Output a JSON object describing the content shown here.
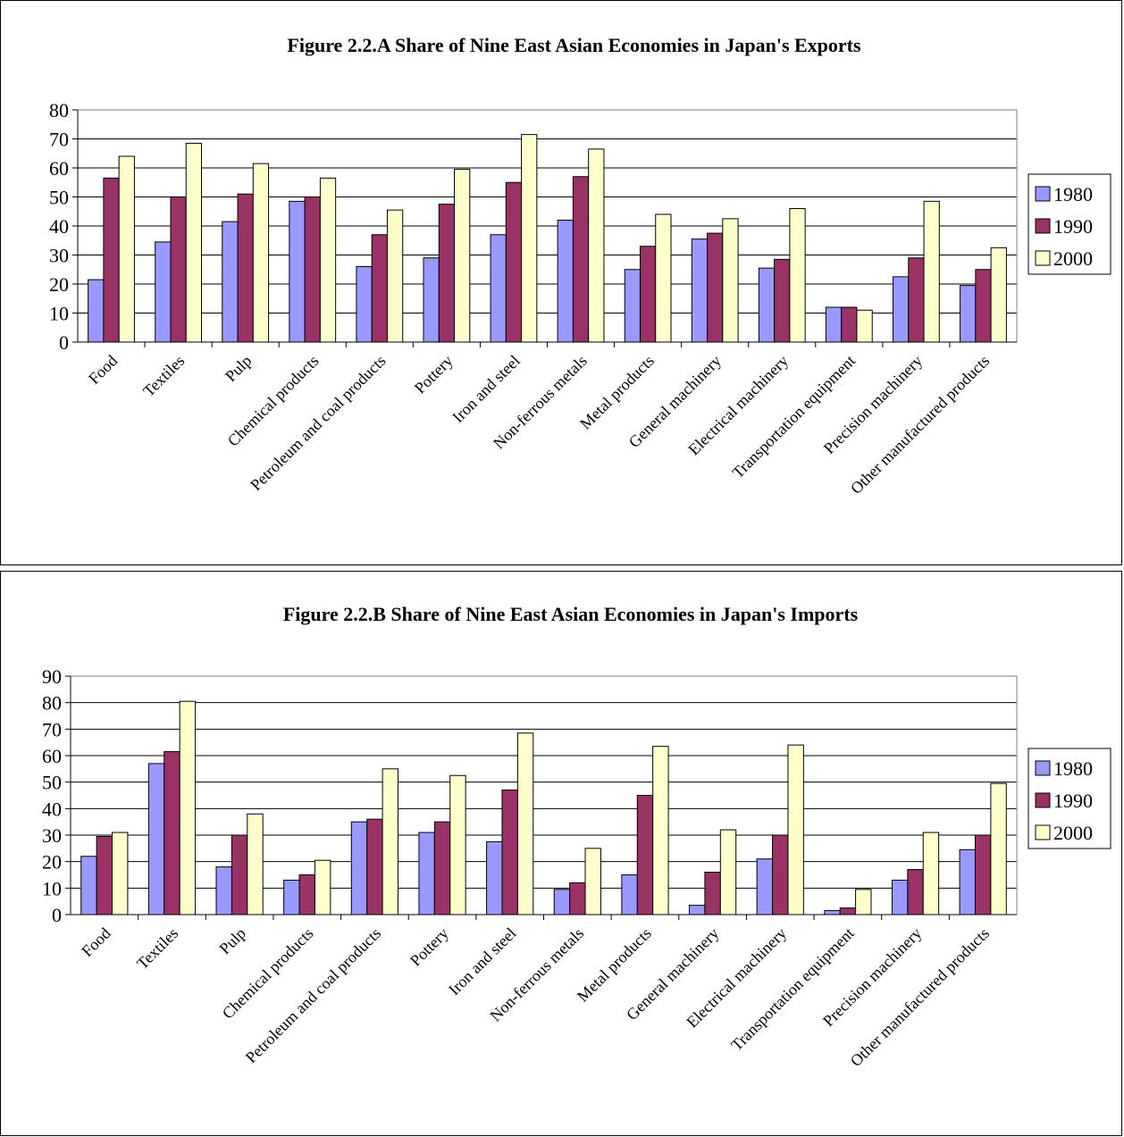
{
  "chart_data": [
    {
      "type": "bar",
      "title": "Figure 2.2.A Share of Nine East Asian Economies in Japan's Exports",
      "categories": [
        "Food",
        "Textiles",
        "Pulp",
        "Chemical products",
        "Petroleum and coal products",
        "Pottery",
        "Iron and steel",
        "Non-ferrous metals",
        "Metal products",
        "General machinery",
        "Electrical machinery",
        "Transportation equipment",
        "Precision machinery",
        "Other manufactured products"
      ],
      "series": [
        {
          "name": "1980",
          "color": "#9999ff",
          "values": [
            21.5,
            34.5,
            41.5,
            48.5,
            26,
            29,
            37,
            42,
            25,
            35.5,
            25.5,
            12,
            22.5,
            19.5
          ]
        },
        {
          "name": "1990",
          "color": "#993366",
          "values": [
            56.5,
            50,
            51,
            50,
            37,
            47.5,
            55,
            57,
            33,
            37.5,
            28.5,
            12,
            29,
            25
          ]
        },
        {
          "name": "2000",
          "color": "#ffffcc",
          "values": [
            64,
            68.5,
            61.5,
            56.5,
            45.5,
            59.5,
            71.5,
            66.5,
            44,
            42.5,
            46,
            11,
            48.5,
            32.5
          ]
        }
      ],
      "ylim": [
        0,
        80
      ],
      "yticks": [
        0,
        10,
        20,
        30,
        40,
        50,
        60,
        70,
        80
      ],
      "grid": true,
      "legend": "right"
    },
    {
      "type": "bar",
      "title": "Figure 2.2.B Share of Nine East Asian Economies in Japan's Imports",
      "categories": [
        "Food",
        "Textiles",
        "Pulp",
        "Chemical products",
        "Petroleum and coal products",
        "Pottery",
        "Iron and steel",
        "Non-ferrous metals",
        "Metal products",
        "General machinery",
        "Electrical machinery",
        "Transportation equipment",
        "Precision machinery",
        "Other manufactured products"
      ],
      "series": [
        {
          "name": "1980",
          "color": "#9999ff",
          "values": [
            22,
            57,
            18,
            13,
            35,
            31,
            27.5,
            9.5,
            15,
            3.5,
            21,
            1.5,
            13,
            24.5
          ]
        },
        {
          "name": "1990",
          "color": "#993366",
          "values": [
            29.5,
            61.5,
            30,
            15,
            36,
            35,
            47,
            12,
            45,
            16,
            30,
            2.5,
            17,
            30
          ]
        },
        {
          "name": "2000",
          "color": "#ffffcc",
          "values": [
            31,
            80.5,
            38,
            20.5,
            55,
            52.5,
            68.5,
            25,
            63.5,
            32,
            64,
            9.5,
            31,
            49.5
          ]
        }
      ],
      "ylim": [
        0,
        90
      ],
      "yticks": [
        0,
        10,
        20,
        30,
        40,
        50,
        60,
        70,
        80,
        90
      ],
      "grid": true,
      "legend": "right"
    }
  ]
}
